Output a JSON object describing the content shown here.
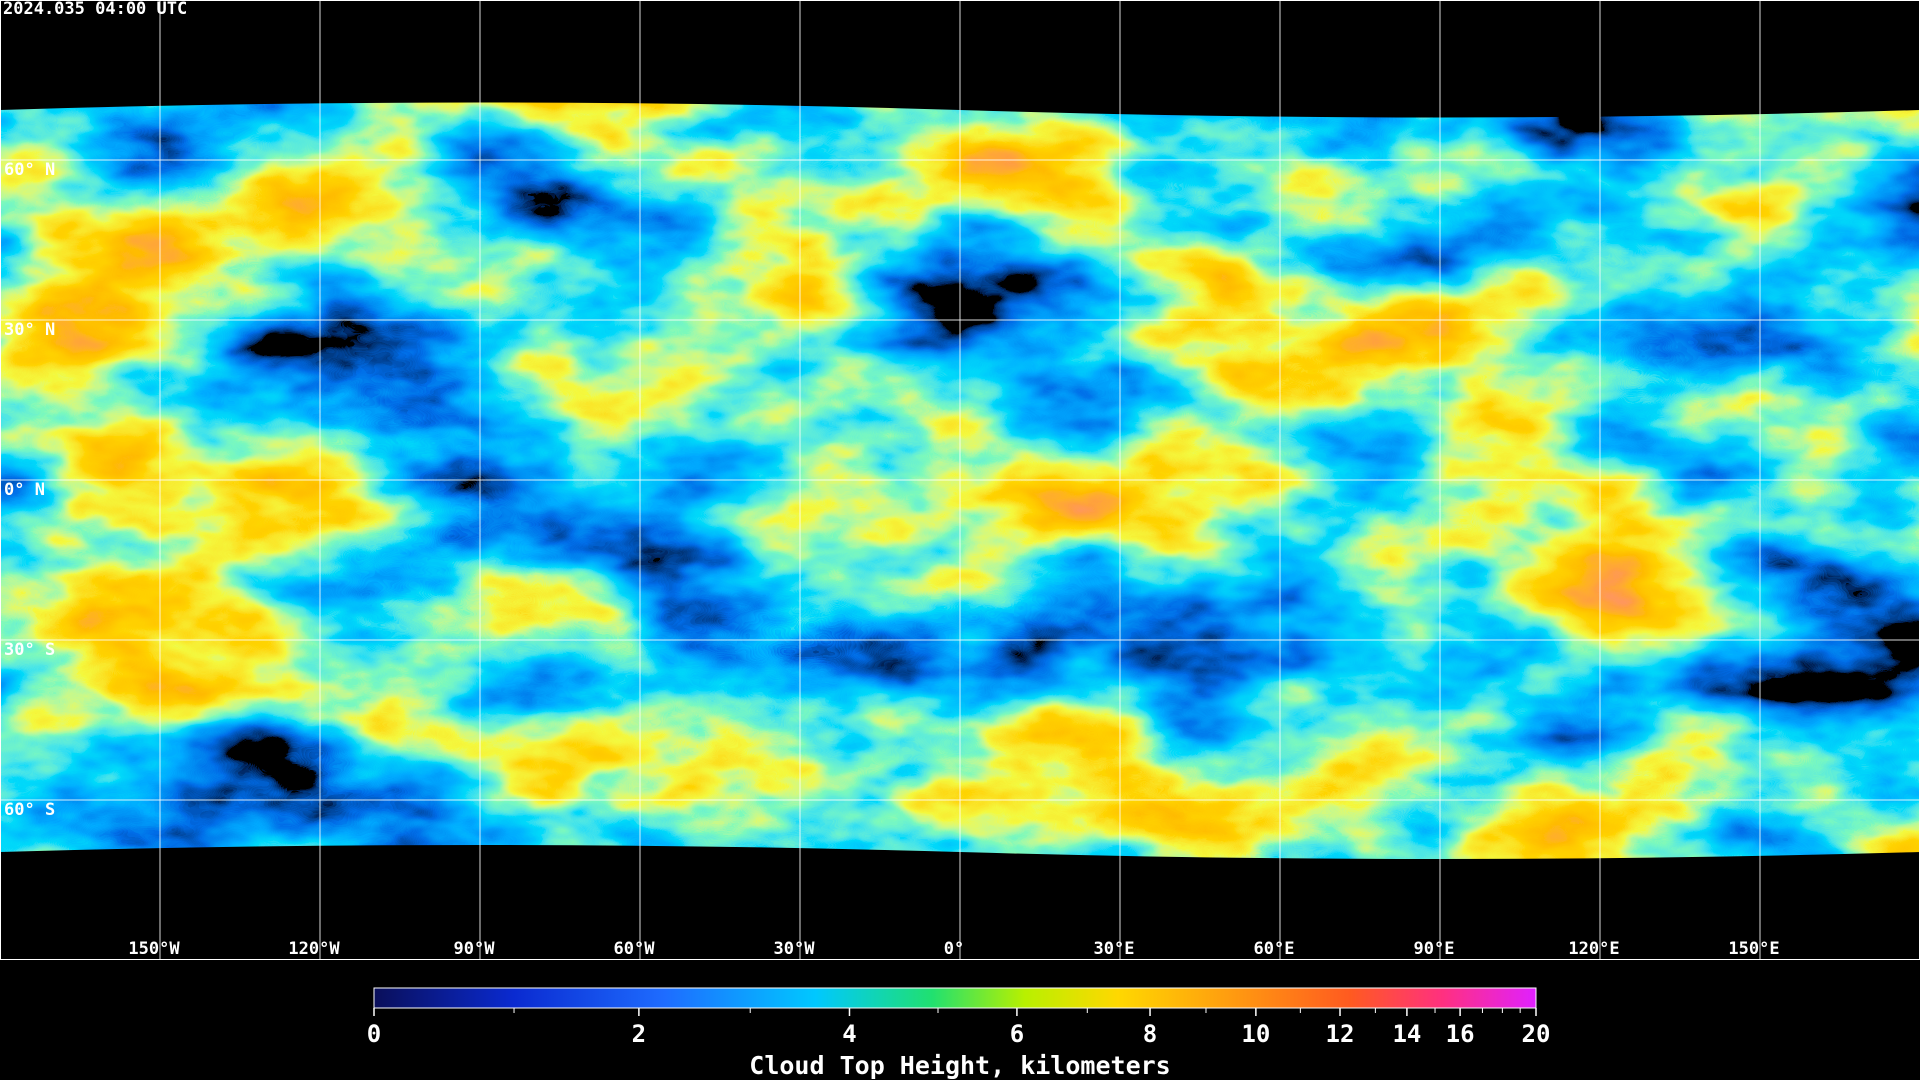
{
  "map": {
    "timestamp": "2024.035 04:00 UTC",
    "lat_labels": [
      "60° N",
      "30° N",
      "0° N",
      "30° S",
      "60° S"
    ],
    "lon_labels": [
      "150°W",
      "120°W",
      "90°W",
      "60°W",
      "30°W",
      "0°",
      "30°E",
      "60°E",
      "90°E",
      "120°E",
      "150°E"
    ]
  },
  "colorbar": {
    "label": "Cloud Top Height, kilometers",
    "lim": [
      0,
      20
    ],
    "ticks": [
      0,
      2,
      4,
      6,
      8,
      10,
      12,
      14,
      16,
      20
    ],
    "minor_ticks": [
      1,
      3,
      5,
      7,
      9,
      11,
      13,
      15,
      17,
      18,
      19
    ]
  }
}
